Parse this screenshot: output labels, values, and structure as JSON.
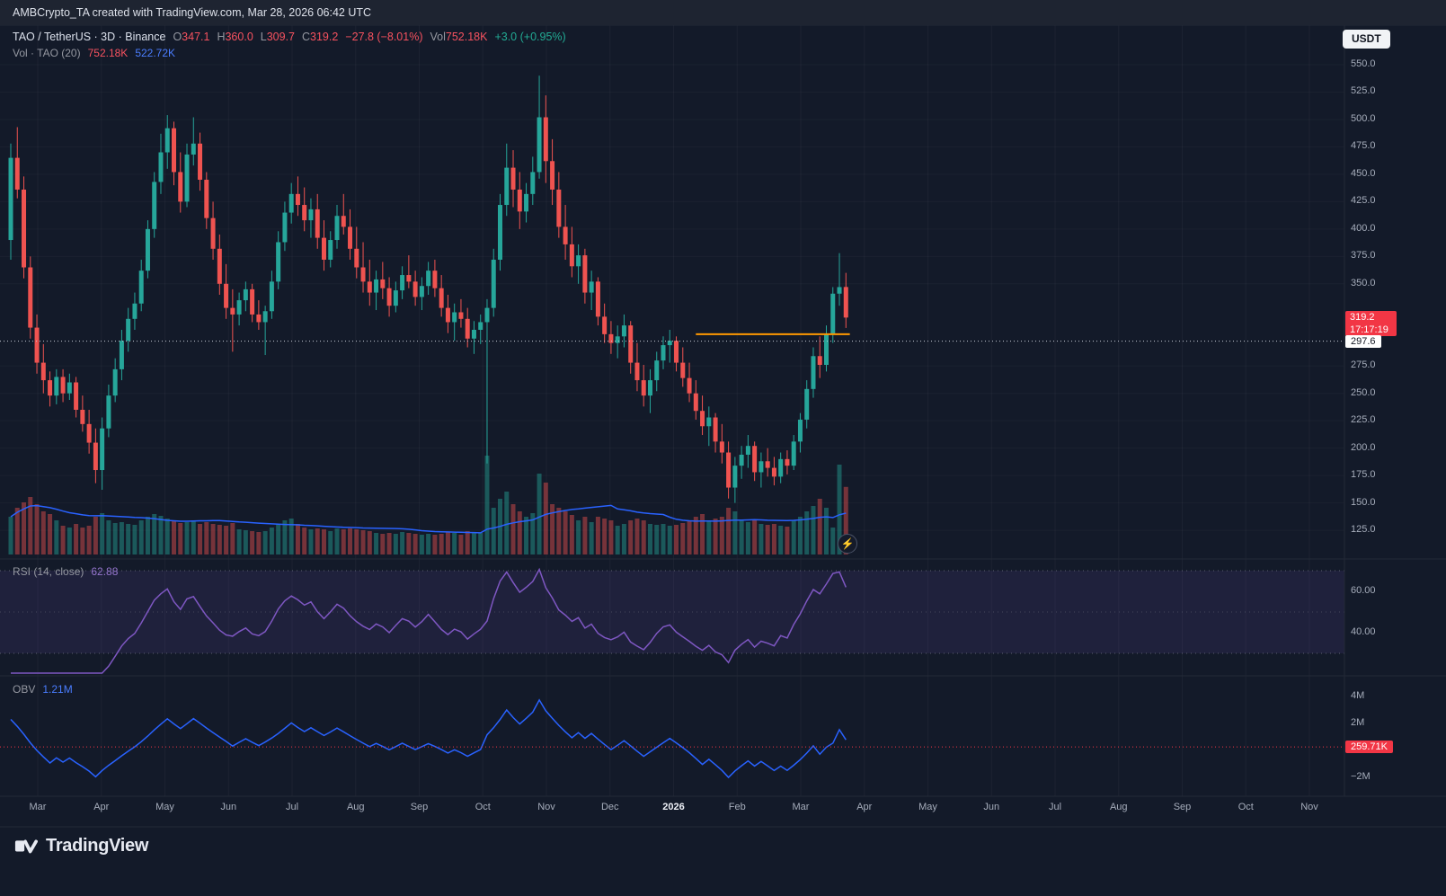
{
  "topbar": {
    "attribution": "AMBCrypto_TA created with TradingView.com, Mar 28, 2026 06:42 UTC"
  },
  "header": {
    "title": "TAO / TetherUS · 3D · Binance",
    "currency_badge": "USDT",
    "ohlc": {
      "o_label": "O",
      "o_value": "347.1",
      "h_label": "H",
      "h_value": "360.0",
      "l_label": "L",
      "l_value": "309.7",
      "c_label": "C",
      "c_value": "319.2",
      "change": "−27.8 (−8.01%)"
    },
    "volume": {
      "label": "Vol",
      "value": "752.18K",
      "change": "+3.0 (+0.95%)"
    },
    "vol_indicator": {
      "label": "Vol · TAO (20)",
      "current": "752.18K",
      "ma": "522.72K"
    }
  },
  "icons": {
    "lightning": "⚡"
  },
  "price_scale": {
    "ticks": [
      550,
      525,
      500,
      475,
      450,
      425,
      400,
      375,
      350,
      275,
      250,
      225,
      200,
      175,
      150,
      125
    ],
    "last_price_badge": {
      "price": "319.2",
      "countdown": "17:17:19",
      "value": 319.2
    },
    "level_badge": {
      "text": "297.6",
      "value": 297.6
    }
  },
  "time_scale": {
    "labels": [
      "Mar",
      "Apr",
      "May",
      "Jun",
      "Jul",
      "Aug",
      "Sep",
      "Oct",
      "Nov",
      "Dec",
      "2026",
      "Feb",
      "Mar",
      "Apr",
      "May",
      "Jun",
      "Jul",
      "Aug",
      "Sep",
      "Oct",
      "Nov"
    ]
  },
  "rsi_pane": {
    "title": "RSI (14, close)",
    "value": "62.88",
    "ticks": [
      60,
      40
    ],
    "bands": {
      "upper": 70,
      "middle": 50,
      "lower": 30
    }
  },
  "obv_pane": {
    "title": "OBV",
    "value": "1.21M",
    "ticks": [
      {
        "label": "4M",
        "value": 4000
      },
      {
        "label": "2M",
        "value": 2000
      },
      {
        "label": "−2M",
        "value": -2000
      }
    ],
    "alert": {
      "label": "259.71K",
      "value": 259.71
    }
  },
  "footer": {
    "logo_text": "TradingView"
  },
  "chart_data": {
    "type": "candlestick",
    "symbol": "TAO/USDT",
    "interval": "3D",
    "exchange": "Binance",
    "panes": [
      "price+volume",
      "RSI(14)",
      "OBV"
    ],
    "price_axis_range": [
      103,
      586
    ],
    "colors": {
      "up": "#26a69a",
      "down": "#ef5350",
      "vol_ma": "#2962ff",
      "rsi": "#7e57c2",
      "obv": "#2962ff",
      "level_orange": "#ff9800",
      "badge_red": "#f23645",
      "dotted_level": "#c7ccd8"
    },
    "rsi_period": 14,
    "vol_ma_period": 20,
    "obv_start_k": 2300,
    "overlays": {
      "orange_level": {
        "price": 304,
        "start_index": 105,
        "end_index": 128.6
      },
      "dotted_level": {
        "price": 297.6
      },
      "obv_alert_k": 259.71
    },
    "candles": [
      [
        390,
        478,
        372,
        465,
        420
      ],
      [
        465,
        493,
        428,
        436,
        520
      ],
      [
        436,
        448,
        355,
        365,
        580
      ],
      [
        365,
        375,
        300,
        310,
        640
      ],
      [
        310,
        322,
        268,
        278,
        560
      ],
      [
        278,
        295,
        250,
        262,
        480
      ],
      [
        262,
        270,
        238,
        248,
        450
      ],
      [
        248,
        272,
        240,
        265,
        380
      ],
      [
        265,
        272,
        242,
        250,
        320
      ],
      [
        250,
        268,
        244,
        260,
        300
      ],
      [
        260,
        265,
        228,
        235,
        340
      ],
      [
        235,
        248,
        215,
        222,
        300
      ],
      [
        222,
        235,
        195,
        205,
        320
      ],
      [
        205,
        218,
        168,
        180,
        420
      ],
      [
        180,
        228,
        162,
        218,
        460
      ],
      [
        218,
        258,
        210,
        248,
        380
      ],
      [
        248,
        282,
        242,
        272,
        350
      ],
      [
        272,
        308,
        262,
        298,
        360
      ],
      [
        298,
        328,
        288,
        318,
        340
      ],
      [
        318,
        342,
        308,
        332,
        330
      ],
      [
        332,
        372,
        325,
        362,
        380
      ],
      [
        362,
        408,
        355,
        400,
        420
      ],
      [
        400,
        452,
        392,
        443,
        450
      ],
      [
        443,
        487,
        432,
        470,
        430
      ],
      [
        470,
        504,
        455,
        492,
        400
      ],
      [
        492,
        498,
        440,
        452,
        380
      ],
      [
        452,
        470,
        415,
        425,
        350
      ],
      [
        425,
        478,
        420,
        468,
        360
      ],
      [
        468,
        502,
        458,
        478,
        380
      ],
      [
        478,
        488,
        435,
        445,
        340
      ],
      [
        445,
        452,
        400,
        410,
        360
      ],
      [
        410,
        425,
        372,
        382,
        340
      ],
      [
        382,
        395,
        340,
        350,
        330
      ],
      [
        350,
        368,
        318,
        328,
        320
      ],
      [
        328,
        345,
        288,
        322,
        350
      ],
      [
        322,
        342,
        312,
        335,
        280
      ],
      [
        335,
        352,
        325,
        345,
        270
      ],
      [
        345,
        350,
        315,
        322,
        260
      ],
      [
        322,
        335,
        308,
        315,
        250
      ],
      [
        315,
        330,
        285,
        325,
        260
      ],
      [
        325,
        362,
        318,
        352,
        300
      ],
      [
        352,
        398,
        345,
        388,
        340
      ],
      [
        388,
        425,
        380,
        415,
        380
      ],
      [
        415,
        442,
        405,
        432,
        400
      ],
      [
        432,
        448,
        412,
        422,
        340
      ],
      [
        422,
        438,
        398,
        408,
        300
      ],
      [
        408,
        428,
        392,
        418,
        280
      ],
      [
        418,
        432,
        382,
        392,
        290
      ],
      [
        392,
        408,
        362,
        372,
        280
      ],
      [
        372,
        398,
        365,
        390,
        260
      ],
      [
        390,
        422,
        382,
        412,
        290
      ],
      [
        412,
        432,
        395,
        402,
        280
      ],
      [
        402,
        418,
        372,
        382,
        290
      ],
      [
        382,
        402,
        355,
        365,
        280
      ],
      [
        365,
        388,
        342,
        352,
        270
      ],
      [
        352,
        372,
        330,
        342,
        260
      ],
      [
        342,
        362,
        326,
        354,
        240
      ],
      [
        354,
        370,
        336,
        346,
        230
      ],
      [
        346,
        356,
        320,
        330,
        240
      ],
      [
        330,
        352,
        324,
        344,
        230
      ],
      [
        344,
        366,
        336,
        358,
        250
      ],
      [
        358,
        376,
        346,
        352,
        240
      ],
      [
        352,
        362,
        330,
        338,
        230
      ],
      [
        338,
        356,
        326,
        348,
        220
      ],
      [
        348,
        370,
        340,
        362,
        230
      ],
      [
        362,
        372,
        338,
        346,
        220
      ],
      [
        346,
        358,
        320,
        328,
        230
      ],
      [
        328,
        340,
        305,
        315,
        250
      ],
      [
        315,
        332,
        298,
        324,
        240
      ],
      [
        324,
        336,
        310,
        318,
        220
      ],
      [
        318,
        328,
        292,
        300,
        260
      ],
      [
        300,
        316,
        286,
        308,
        250
      ],
      [
        308,
        322,
        295,
        315,
        240
      ],
      [
        315,
        336,
        186,
        328,
        1100
      ],
      [
        328,
        382,
        320,
        372,
        520
      ],
      [
        372,
        432,
        362,
        422,
        620
      ],
      [
        422,
        478,
        412,
        456,
        700
      ],
      [
        456,
        472,
        420,
        436,
        560
      ],
      [
        436,
        452,
        400,
        416,
        480
      ],
      [
        416,
        442,
        406,
        432,
        420
      ],
      [
        432,
        466,
        422,
        452,
        460
      ],
      [
        452,
        540,
        446,
        502,
        900
      ],
      [
        502,
        522,
        442,
        462,
        800
      ],
      [
        462,
        482,
        422,
        436,
        560
      ],
      [
        436,
        452,
        392,
        402,
        520
      ],
      [
        402,
        422,
        372,
        386,
        480
      ],
      [
        386,
        402,
        356,
        366,
        440
      ],
      [
        366,
        386,
        350,
        376,
        380
      ],
      [
        376,
        382,
        332,
        342,
        420
      ],
      [
        342,
        362,
        326,
        352,
        360
      ],
      [
        352,
        356,
        312,
        320,
        420
      ],
      [
        320,
        332,
        296,
        304,
        400
      ],
      [
        304,
        316,
        286,
        296,
        380
      ],
      [
        296,
        312,
        282,
        302,
        320
      ],
      [
        302,
        322,
        292,
        312,
        340
      ],
      [
        312,
        316,
        268,
        278,
        380
      ],
      [
        278,
        296,
        252,
        262,
        400
      ],
      [
        262,
        276,
        238,
        248,
        380
      ],
      [
        248,
        272,
        232,
        262,
        340
      ],
      [
        262,
        288,
        252,
        280,
        330
      ],
      [
        280,
        302,
        272,
        294,
        340
      ],
      [
        294,
        308,
        278,
        298,
        320
      ],
      [
        298,
        302,
        270,
        278,
        330
      ],
      [
        278,
        292,
        256,
        264,
        350
      ],
      [
        264,
        278,
        242,
        250,
        380
      ],
      [
        250,
        262,
        226,
        234,
        420
      ],
      [
        234,
        248,
        212,
        220,
        450
      ],
      [
        220,
        238,
        202,
        228,
        380
      ],
      [
        228,
        232,
        196,
        206,
        400
      ],
      [
        206,
        222,
        186,
        196,
        420
      ],
      [
        196,
        206,
        154,
        164,
        520
      ],
      [
        164,
        192,
        150,
        184,
        480
      ],
      [
        184,
        202,
        172,
        194,
        380
      ],
      [
        194,
        212,
        182,
        202,
        360
      ],
      [
        202,
        206,
        170,
        178,
        380
      ],
      [
        178,
        196,
        164,
        188,
        340
      ],
      [
        188,
        200,
        174,
        182,
        330
      ],
      [
        182,
        192,
        166,
        174,
        340
      ],
      [
        174,
        196,
        168,
        190,
        320
      ],
      [
        190,
        198,
        176,
        184,
        310
      ],
      [
        184,
        212,
        180,
        206,
        380
      ],
      [
        206,
        232,
        196,
        226,
        420
      ],
      [
        226,
        262,
        218,
        254,
        480
      ],
      [
        254,
        292,
        246,
        284,
        540
      ],
      [
        284,
        302,
        264,
        276,
        620
      ],
      [
        276,
        312,
        270,
        304,
        520
      ],
      [
        304,
        347,
        296,
        341,
        300
      ],
      [
        341,
        378,
        330,
        347,
        1000
      ],
      [
        347.1,
        360,
        309.7,
        319.2,
        752.18
      ]
    ]
  }
}
